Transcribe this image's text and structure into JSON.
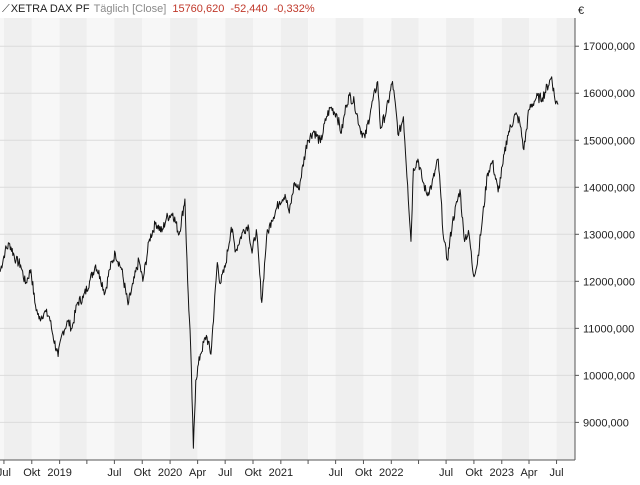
{
  "header": {
    "symbol": "XETRA DAX PF",
    "interval": "Täglich [Close]",
    "last": "15760,620",
    "change": "-52,440",
    "change_pct": "-0,332%"
  },
  "colors": {
    "line": "#111111",
    "negative": "#c0392b",
    "band_light": "#f7f7f7",
    "band_dark": "#efefef",
    "grid": "#dcdcdc",
    "axis_text": "#222222"
  },
  "chart_data": {
    "type": "line",
    "currency_label": "€",
    "y_ticks": [
      9000,
      10000,
      11000,
      12000,
      13000,
      14000,
      15000,
      16000,
      17000
    ],
    "y_tick_labels": [
      "9000,000",
      "10000,000",
      "11000,000",
      "12000,000",
      "13000,000",
      "14000,000",
      "15000,000",
      "16000,000",
      "17000,000"
    ],
    "ylim": [
      8200,
      17600
    ],
    "xlim": [
      "2018-06-18",
      "2023-08-31"
    ],
    "x_ticks": [
      {
        "date": "2018-07-01",
        "label": "Jul"
      },
      {
        "date": "2018-10-01",
        "label": "Okt"
      },
      {
        "date": "2019-01-01",
        "label": "2019"
      },
      {
        "date": "2019-04-01",
        "label": "Apr"
      },
      {
        "date": "2019-07-01",
        "label": "Jul"
      },
      {
        "date": "2019-10-01",
        "label": "Okt"
      },
      {
        "date": "2020-01-01",
        "label": "2020"
      },
      {
        "date": "2020-04-01",
        "label": "Apr"
      },
      {
        "date": "2020-07-01",
        "label": "Jul"
      },
      {
        "date": "2020-10-01",
        "label": "Okt"
      },
      {
        "date": "2021-01-01",
        "label": "2021"
      },
      {
        "date": "2021-04-01",
        "label": "Apr"
      },
      {
        "date": "2021-07-01",
        "label": "Jul"
      },
      {
        "date": "2021-10-01",
        "label": "Okt"
      },
      {
        "date": "2022-01-01",
        "label": "2022"
      },
      {
        "date": "2022-04-01",
        "label": "Apr"
      },
      {
        "date": "2022-07-01",
        "label": "Jul"
      },
      {
        "date": "2022-10-01",
        "label": "Okt"
      },
      {
        "date": "2023-01-01",
        "label": "2023"
      },
      {
        "date": "2023-04-01",
        "label": "Apr"
      },
      {
        "date": "2023-07-01",
        "label": "Jul"
      }
    ],
    "x_tick_labels_shown": [
      "Jul",
      "Okt",
      "2019",
      "Jul",
      "Okt",
      "2020",
      "Apr",
      "Jul",
      "Okt",
      "2021",
      "Jul",
      "Okt",
      "2022",
      "Jul",
      "Okt",
      "2023",
      "Apr",
      "Jul"
    ],
    "series": [
      {
        "points": [
          [
            "2018-06-18",
            12200
          ],
          [
            "2018-07-05",
            12650
          ],
          [
            "2018-07-20",
            12800
          ],
          [
            "2018-08-10",
            12450
          ],
          [
            "2018-08-25",
            12350
          ],
          [
            "2018-09-10",
            11950
          ],
          [
            "2018-09-28",
            12250
          ],
          [
            "2018-10-11",
            11550
          ],
          [
            "2018-10-25",
            11200
          ],
          [
            "2018-11-12",
            11350
          ],
          [
            "2018-11-28",
            11250
          ],
          [
            "2018-12-10",
            10850
          ],
          [
            "2018-12-27",
            10400
          ],
          [
            "2019-01-10",
            10900
          ],
          [
            "2019-01-28",
            11150
          ],
          [
            "2019-02-11",
            11000
          ],
          [
            "2019-03-01",
            11550
          ],
          [
            "2019-03-20",
            11650
          ],
          [
            "2019-04-10",
            12000
          ],
          [
            "2019-04-30",
            12350
          ],
          [
            "2019-05-15",
            12100
          ],
          [
            "2019-05-31",
            11750
          ],
          [
            "2019-06-15",
            12250
          ],
          [
            "2019-07-04",
            12600
          ],
          [
            "2019-07-25",
            12250
          ],
          [
            "2019-08-15",
            11500
          ],
          [
            "2019-09-01",
            11950
          ],
          [
            "2019-09-20",
            12450
          ],
          [
            "2019-10-03",
            12000
          ],
          [
            "2019-10-25",
            12900
          ],
          [
            "2019-11-15",
            13250
          ],
          [
            "2019-12-05",
            13050
          ],
          [
            "2019-12-20",
            13350
          ],
          [
            "2020-01-10",
            13450
          ],
          [
            "2020-01-31",
            13000
          ],
          [
            "2020-02-19",
            13750
          ],
          [
            "2020-02-28",
            12000
          ],
          [
            "2020-03-09",
            10600
          ],
          [
            "2020-03-18",
            8450
          ],
          [
            "2020-03-26",
            9900
          ],
          [
            "2020-04-10",
            10450
          ],
          [
            "2020-04-30",
            10850
          ],
          [
            "2020-05-15",
            10450
          ],
          [
            "2020-06-05",
            12400
          ],
          [
            "2020-06-15",
            11950
          ],
          [
            "2020-07-01",
            12300
          ],
          [
            "2020-07-21",
            13150
          ],
          [
            "2020-08-05",
            12650
          ],
          [
            "2020-08-28",
            13050
          ],
          [
            "2020-09-15",
            13200
          ],
          [
            "2020-09-28",
            12600
          ],
          [
            "2020-10-12",
            13100
          ],
          [
            "2020-10-30",
            11550
          ],
          [
            "2020-11-15",
            12950
          ],
          [
            "2020-12-01",
            13300
          ],
          [
            "2020-12-28",
            13700
          ],
          [
            "2021-01-15",
            13850
          ],
          [
            "2021-01-29",
            13450
          ],
          [
            "2021-02-15",
            14100
          ],
          [
            "2021-03-01",
            13950
          ],
          [
            "2021-03-30",
            15000
          ],
          [
            "2021-04-20",
            15200
          ],
          [
            "2021-05-12",
            14950
          ],
          [
            "2021-06-01",
            15500
          ],
          [
            "2021-06-15",
            15700
          ],
          [
            "2021-07-05",
            15550
          ],
          [
            "2021-07-20",
            15150
          ],
          [
            "2021-08-05",
            15750
          ],
          [
            "2021-08-15",
            15950
          ],
          [
            "2021-09-01",
            15800
          ],
          [
            "2021-09-20",
            15250
          ],
          [
            "2021-10-06",
            15050
          ],
          [
            "2021-10-25",
            15650
          ],
          [
            "2021-11-17",
            16250
          ],
          [
            "2021-11-26",
            15250
          ],
          [
            "2021-12-15",
            15600
          ],
          [
            "2022-01-05",
            16250
          ],
          [
            "2022-01-25",
            15100
          ],
          [
            "2022-02-10",
            15500
          ],
          [
            "2022-02-24",
            14050
          ],
          [
            "2022-03-07",
            12850
          ],
          [
            "2022-03-15",
            14400
          ],
          [
            "2022-03-30",
            14600
          ],
          [
            "2022-04-12",
            14200
          ],
          [
            "2022-04-28",
            13850
          ],
          [
            "2022-05-15",
            14050
          ],
          [
            "2022-06-05",
            14600
          ],
          [
            "2022-06-23",
            12900
          ],
          [
            "2022-07-05",
            12450
          ],
          [
            "2022-07-22",
            13250
          ],
          [
            "2022-08-16",
            13950
          ],
          [
            "2022-08-29",
            12950
          ],
          [
            "2022-09-15",
            13000
          ],
          [
            "2022-09-29",
            12150
          ],
          [
            "2022-10-10",
            12300
          ],
          [
            "2022-10-28",
            13250
          ],
          [
            "2022-11-15",
            14300
          ],
          [
            "2022-12-01",
            14550
          ],
          [
            "2022-12-20",
            13900
          ],
          [
            "2023-01-05",
            14500
          ],
          [
            "2023-01-20",
            15100
          ],
          [
            "2023-02-15",
            15550
          ],
          [
            "2023-03-01",
            15400
          ],
          [
            "2023-03-15",
            14800
          ],
          [
            "2023-04-01",
            15650
          ],
          [
            "2023-04-25",
            15900
          ],
          [
            "2023-05-15",
            15900
          ],
          [
            "2023-06-15",
            16350
          ],
          [
            "2023-06-26",
            15850
          ],
          [
            "2023-07-06",
            15760
          ]
        ]
      }
    ]
  }
}
